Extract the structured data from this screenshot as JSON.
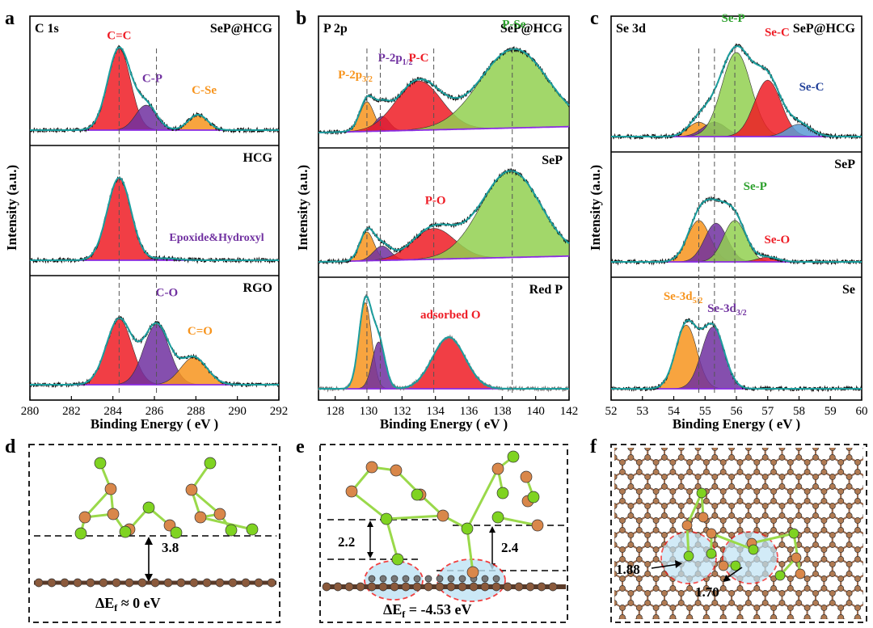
{
  "panel_letters": [
    "a",
    "b",
    "c",
    "d",
    "e",
    "f"
  ],
  "axis_common": {
    "xlabel": "Binding Energy ( eV )",
    "ylabel": "Intensity (a.u.)"
  },
  "colors": {
    "red": "#ee1c25",
    "purple": "#7030a0",
    "orange": "#f7941d",
    "green": "#2ca02c",
    "blue": "#1f3f99",
    "envelope": "#1b9e9e",
    "raw": "#111111",
    "baseline": "#8a2be2"
  },
  "chart_data": [
    {
      "id": "a",
      "type": "line",
      "title": "C 1s",
      "xlabel": "Binding Energy ( eV )",
      "ylabel": "Intensity (a.u.)",
      "xlim": [
        280,
        292
      ],
      "xticks": [
        280,
        282,
        284,
        286,
        288,
        290,
        292
      ],
      "rows": [
        {
          "sample": "SeP@HCG",
          "peaks": [
            {
              "name": "C=C",
              "label": "C=C",
              "center": 284.3,
              "fwhm": 1.3,
              "height": 0.85,
              "color": "#ee1c25"
            },
            {
              "name": "C-P",
              "label": "C-P",
              "center": 285.6,
              "fwhm": 1.2,
              "height": 0.26,
              "color": "#7030a0"
            },
            {
              "name": "C-Se",
              "label": "C-Se",
              "center": 288.1,
              "fwhm": 1.1,
              "height": 0.16,
              "color": "#f7941d"
            }
          ]
        },
        {
          "sample": "HCG",
          "peaks": [
            {
              "name": "C=C",
              "label": "",
              "center": 284.3,
              "fwhm": 1.35,
              "height": 0.85,
              "color": "#ee1c25"
            },
            {
              "name": "Epoxide&Hydroxyl",
              "label": "Epoxide&Hydroxyl",
              "center": 286.5,
              "fwhm": 1.5,
              "height": 0.02,
              "color": "#7030a0"
            }
          ]
        },
        {
          "sample": "RGO",
          "peaks": [
            {
              "name": "C=C",
              "label": "",
              "center": 284.3,
              "fwhm": 1.45,
              "height": 0.72,
              "color": "#ee1c25"
            },
            {
              "name": "C-O",
              "label": "C-O",
              "center": 286.1,
              "fwhm": 1.45,
              "height": 0.66,
              "color": "#7030a0"
            },
            {
              "name": "C=O",
              "label": "C=O",
              "center": 287.9,
              "fwhm": 1.5,
              "height": 0.3,
              "color": "#f7941d"
            }
          ]
        }
      ],
      "guide_lines": [
        284.3,
        286.1
      ]
    },
    {
      "id": "b",
      "type": "line",
      "title": "P 2p",
      "xlabel": "Binding Energy ( eV )",
      "ylabel": "Intensity (a.u.)",
      "xlim": [
        127,
        142
      ],
      "xticks": [
        128,
        130,
        132,
        134,
        136,
        138,
        140,
        142
      ],
      "rows": [
        {
          "sample": "SeP@HCG",
          "peaks": [
            {
              "name": "P-2p3/2",
              "label": "P-2p",
              "sub": "3/2",
              "center": 129.9,
              "fwhm": 1.0,
              "height": 0.3,
              "color": "#f7941d"
            },
            {
              "name": "P-2p1/2",
              "label": "P-2p",
              "sub": "1/2",
              "center": 130.8,
              "fwhm": 1.0,
              "height": 0.15,
              "color": "#7030a0"
            },
            {
              "name": "P-C",
              "label": "P-C",
              "center": 133.0,
              "fwhm": 3.2,
              "height": 0.5,
              "color": "#ee1c25"
            },
            {
              "name": "P-Se",
              "label": "P-Se",
              "center": 138.7,
              "fwhm": 4.8,
              "height": 0.8,
              "color": "#92d050"
            }
          ]
        },
        {
          "sample": "SeP",
          "peaks": [
            {
              "name": "P-2p3/2",
              "label": "",
              "center": 129.9,
              "fwhm": 1.0,
              "height": 0.3,
              "color": "#f7941d"
            },
            {
              "name": "P-2p1/2",
              "label": "",
              "center": 130.8,
              "fwhm": 1.2,
              "height": 0.15,
              "color": "#7030a0"
            },
            {
              "name": "P-O",
              "label": "P-O",
              "center": 133.9,
              "fwhm": 3.0,
              "height": 0.32,
              "color": "#ee1c25"
            },
            {
              "name": "P-Se",
              "label": "",
              "center": 138.5,
              "fwhm": 4.2,
              "height": 0.9,
              "color": "#92d050"
            }
          ]
        },
        {
          "sample": "Red P",
          "peaks": [
            {
              "name": "P-2p3/2",
              "label": "",
              "center": 129.8,
              "fwhm": 0.9,
              "height": 0.92,
              "color": "#f7941d"
            },
            {
              "name": "P-2p1/2",
              "label": "",
              "center": 130.6,
              "fwhm": 0.9,
              "height": 0.5,
              "color": "#7030a0"
            },
            {
              "name": "adsorbed O",
              "label": "adsorbed O",
              "center": 134.8,
              "fwhm": 2.3,
              "height": 0.55,
              "color": "#ee1c25"
            }
          ]
        }
      ],
      "guide_lines": [
        129.9,
        130.7,
        133.9,
        138.6
      ]
    },
    {
      "id": "c",
      "type": "line",
      "title": "Se 3d",
      "xlabel": "Binding Energy ( eV )",
      "ylabel": "Intensity (a.u.)",
      "xlim": [
        52,
        60
      ],
      "xticks": [
        52,
        53,
        54,
        55,
        56,
        57,
        58,
        59,
        60
      ],
      "rows": [
        {
          "sample": "SeP@HCG",
          "peaks": [
            {
              "name": "Se-3d5/2",
              "label": "",
              "center": 54.8,
              "fwhm": 0.8,
              "height": 0.14,
              "color": "#f7941d"
            },
            {
              "name": "Se-3d3/2",
              "label": "",
              "center": 55.3,
              "fwhm": 0.9,
              "height": 0.14,
              "color": "#7030a0"
            },
            {
              "name": "Se-P",
              "label": "Se-P",
              "center": 56.0,
              "fwhm": 1.1,
              "height": 0.82,
              "color": "#92d050"
            },
            {
              "name": "Se-C",
              "label": "Se-C",
              "center": 57.0,
              "fwhm": 1.0,
              "height": 0.55,
              "color": "#ee1c25"
            },
            {
              "name": "Se-C2",
              "label": "Se-C",
              "center": 58.0,
              "fwhm": 0.9,
              "height": 0.12,
              "color": "#5b9bd5"
            }
          ]
        },
        {
          "sample": "SeP",
          "peaks": [
            {
              "name": "Se-3d5/2",
              "label": "",
              "center": 54.8,
              "fwhm": 0.85,
              "height": 0.45,
              "color": "#f7941d"
            },
            {
              "name": "Se-3d3/2",
              "label": "",
              "center": 55.35,
              "fwhm": 0.85,
              "height": 0.42,
              "color": "#7030a0"
            },
            {
              "name": "Se-P",
              "label": "Se-P",
              "center": 55.95,
              "fwhm": 0.85,
              "height": 0.45,
              "color": "#92d050"
            },
            {
              "name": "Se-O",
              "label": "Se-O",
              "center": 57.0,
              "fwhm": 0.8,
              "height": 0.05,
              "color": "#ee1c25"
            }
          ]
        },
        {
          "sample": "Se",
          "peaks": [
            {
              "name": "Se-3d5/2",
              "label": "Se-3d",
              "sub": "5/2",
              "center": 54.4,
              "fwhm": 0.8,
              "height": 0.68,
              "color": "#f7941d"
            },
            {
              "name": "Se-3d3/2",
              "label": "Se-3d",
              "sub": "3/2",
              "center": 55.25,
              "fwhm": 0.85,
              "height": 0.66,
              "color": "#7030a0"
            }
          ]
        }
      ],
      "guide_lines": [
        54.8,
        55.3,
        55.95
      ]
    }
  ],
  "structures": {
    "d": {
      "distance": "3.8",
      "energy": "ΔE",
      "energy_sub": "f",
      "energy_value": " ≈ 0 eV"
    },
    "e": {
      "distance_left": "2.2",
      "distance_right": "2.4",
      "energy": "ΔE",
      "energy_sub": "f",
      "energy_value": " = -4.53 eV"
    },
    "f": {
      "bond_a": "1.88",
      "bond_b": "1.70"
    }
  }
}
